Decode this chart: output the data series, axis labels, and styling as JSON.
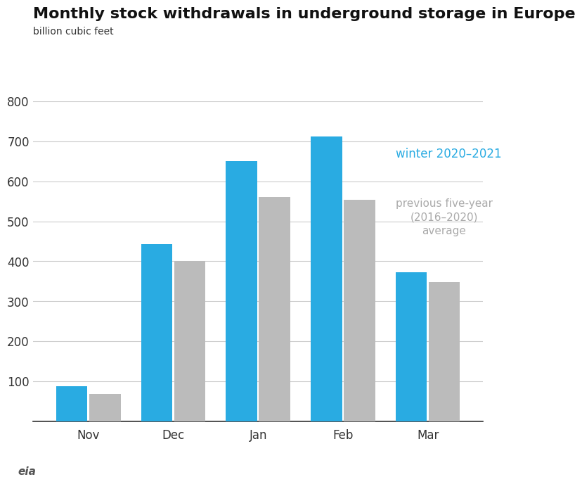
{
  "title": "Monthly stock withdrawals in underground storage in Europe",
  "subtitle": "billion cubic feet",
  "categories": [
    "Nov",
    "Dec",
    "Jan",
    "Feb",
    "Mar"
  ],
  "winter_2020_2021": [
    88,
    443,
    650,
    712,
    373
  ],
  "prev_five_year_avg": [
    68,
    400,
    560,
    553,
    348
  ],
  "bar_color_winter": "#29ABE2",
  "bar_color_avg": "#BBBBBB",
  "label_winter": "winter 2020–2021",
  "label_avg": "previous five-year\n(2016–2020)\naverage",
  "label_winter_color": "#29ABE2",
  "label_avg_color": "#AAAAAA",
  "ylim": [
    0,
    800
  ],
  "yticks": [
    0,
    100,
    200,
    300,
    400,
    500,
    600,
    700,
    800
  ],
  "title_fontsize": 16,
  "subtitle_fontsize": 10,
  "tick_fontsize": 12,
  "background_color": "#FFFFFF",
  "grid_color": "#CCCCCC",
  "bar_width": 0.37,
  "bar_gap": 0.02
}
